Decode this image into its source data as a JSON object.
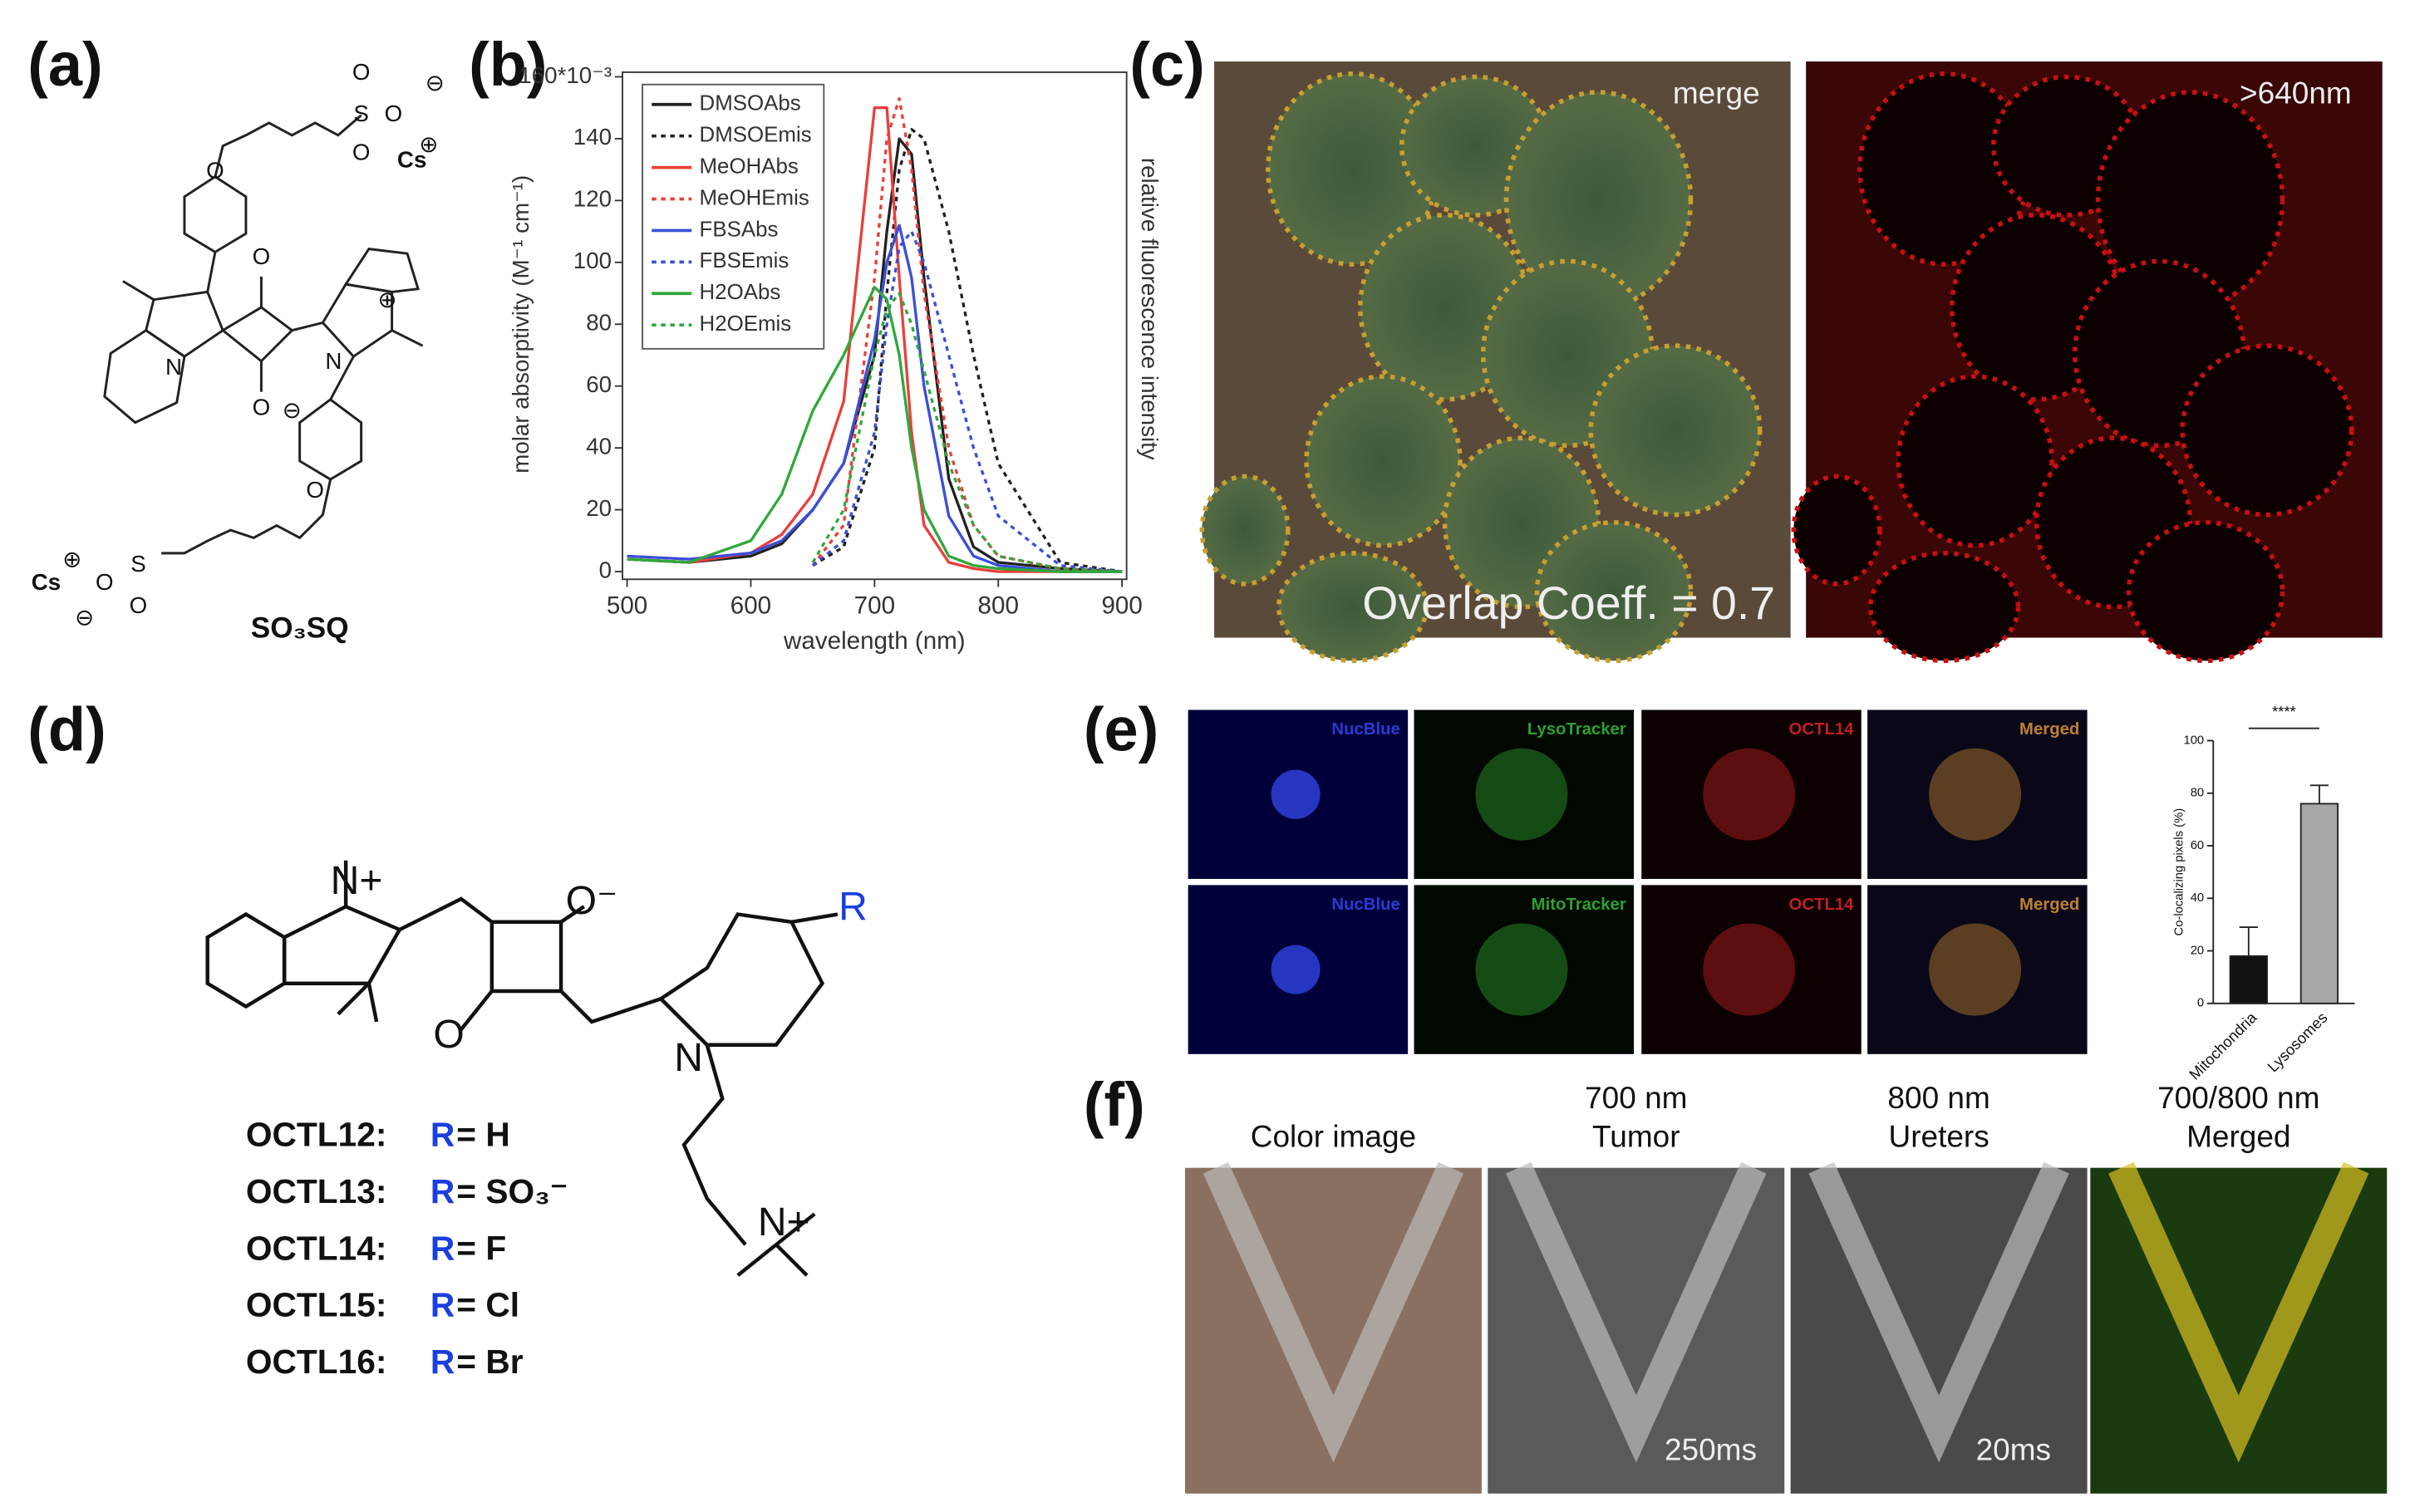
{
  "panel_labels": [
    "(a)",
    "(b)",
    "(c)",
    "(d)",
    "(e)",
    "(f)"
  ],
  "structure_a": {
    "name": "SO₃SQ",
    "atoms": [
      "O",
      "S",
      "O",
      "O",
      "⊖",
      "Cs",
      "⊕",
      "O",
      "O",
      "N",
      "⊕",
      "N",
      "O",
      "⊖",
      "O",
      "S",
      "O",
      "O",
      "Cs",
      "⊕",
      "⊖"
    ]
  },
  "panel_c": {
    "left_label": "merge",
    "right_label": ">640nm",
    "overlap": "Overlap Coeff. = 0.7"
  },
  "structure_d": {
    "atoms": [
      "N+",
      "O⁻",
      "O",
      "N",
      "N+",
      "R"
    ],
    "rows": [
      [
        "OCTL12:",
        "R",
        "= H"
      ],
      [
        "OCTL13:",
        "R",
        "= SO₃⁻"
      ],
      [
        "OCTL14:",
        "R",
        "= F"
      ],
      [
        "OCTL15:",
        "R",
        "= Cl"
      ],
      [
        "OCTL16:",
        "R",
        "= Br"
      ]
    ]
  },
  "panel_e": {
    "rows": [
      [
        "NucBlue",
        "LysoTracker",
        "OCTL14",
        "Merged"
      ],
      [
        "NucBlue",
        "MitoTracker",
        "OCTL14",
        "Merged"
      ]
    ]
  },
  "panel_f": {
    "columns": [
      {
        "title": [
          "Color image"
        ]
      },
      {
        "title": [
          "700 nm",
          "Tumor"
        ],
        "note": "250ms"
      },
      {
        "title": [
          "800 nm",
          "Ureters"
        ],
        "note": "20ms"
      },
      {
        "title": [
          "700/800 nm",
          "Merged"
        ]
      }
    ]
  },
  "chart_data": [
    {
      "type": "line",
      "x_label": "wavelength (nm)",
      "y_label": "molar absorptivity (M⁻¹ cm⁻¹)",
      "y2_label": "relative fluorescence intensity",
      "x": [
        500,
        550,
        600,
        625,
        650,
        675,
        700,
        710,
        720,
        730,
        740,
        760,
        780,
        800,
        850,
        900
      ],
      "xlim": [
        500,
        900
      ],
      "xticks": [
        500,
        600,
        700,
        800,
        900
      ],
      "ylim": [
        0,
        160
      ],
      "yticks": [
        0,
        20,
        40,
        60,
        80,
        100,
        120,
        140,
        {
          "value": 160,
          "label": "160*10⁻³"
        }
      ],
      "legend": "upper left",
      "series": [
        {
          "name": "DMSOAbs",
          "color": "#222222",
          "style": "solid",
          "values": [
            4,
            3,
            5,
            9,
            20,
            35,
            70,
            110,
            140,
            135,
            95,
            30,
            8,
            3,
            1,
            0
          ]
        },
        {
          "name": "DMSOEmis",
          "color": "#222222",
          "style": "dotted",
          "values": [
            null,
            null,
            null,
            null,
            2,
            8,
            40,
            90,
            130,
            143,
            140,
            110,
            70,
            35,
            3,
            0
          ]
        },
        {
          "name": "MeOHAbs",
          "color": "#e8403c",
          "style": "solid",
          "values": [
            4,
            3,
            6,
            12,
            25,
            55,
            150,
            150,
            95,
            45,
            15,
            3,
            1,
            0,
            0,
            0
          ]
        },
        {
          "name": "MeOHEmis",
          "color": "#e8403c",
          "style": "dotted",
          "values": [
            null,
            null,
            null,
            null,
            2,
            15,
            95,
            140,
            153,
            130,
            90,
            40,
            15,
            5,
            1,
            0
          ]
        },
        {
          "name": "FBSAbs",
          "color": "#3a4fd8",
          "style": "solid",
          "values": [
            5,
            4,
            6,
            10,
            20,
            35,
            75,
            100,
            112,
            95,
            60,
            18,
            5,
            2,
            0,
            0
          ]
        },
        {
          "name": "FBSEmis",
          "color": "#3a4fd8",
          "style": "dotted",
          "values": [
            null,
            null,
            null,
            null,
            2,
            10,
            45,
            80,
            105,
            110,
            100,
            70,
            40,
            18,
            2,
            0
          ]
        },
        {
          "name": "H2OAbs",
          "color": "#2fa83a",
          "style": "solid",
          "values": [
            4,
            3,
            10,
            25,
            52,
            70,
            92,
            88,
            70,
            40,
            20,
            5,
            2,
            1,
            0,
            0
          ]
        },
        {
          "name": "H2OEmis",
          "color": "#2fa83a",
          "style": "dotted",
          "values": [
            null,
            null,
            null,
            null,
            3,
            20,
            70,
            85,
            90,
            80,
            65,
            35,
            15,
            5,
            1,
            0
          ]
        }
      ]
    },
    {
      "type": "bar",
      "y_label": "Co-localizing pixels (%)",
      "annotation": "****",
      "categories": [
        "Mitochondria",
        "Lysosomes"
      ],
      "values": [
        18,
        76
      ],
      "errors": [
        11,
        7
      ],
      "colors": [
        "#111111",
        "#a8a8a8"
      ],
      "ylim": [
        0,
        100
      ],
      "yticks": [
        0,
        20,
        40,
        60,
        80,
        100
      ]
    }
  ]
}
